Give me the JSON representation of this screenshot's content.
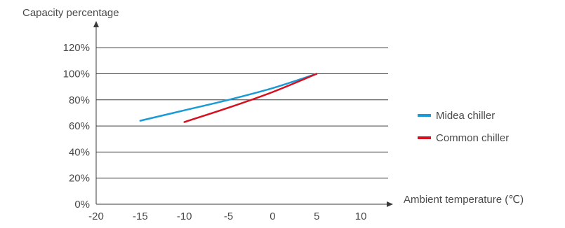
{
  "chart_data": {
    "type": "line",
    "title": "",
    "ylabel": "Capacity percentage",
    "xlabel": "Ambient temperature (℃)",
    "xlim": [
      -20,
      13
    ],
    "ylim": [
      0,
      130
    ],
    "xticks": [
      -20,
      -15,
      -10,
      -5,
      0,
      5,
      10
    ],
    "xtick_labels": [
      "-20",
      "-15",
      "-10",
      "-5",
      "0",
      "5",
      "10"
    ],
    "yticks": [
      0,
      20,
      40,
      60,
      80,
      100,
      120
    ],
    "ytick_labels": [
      "0%",
      "20%",
      "40%",
      "60%",
      "80%",
      "100%",
      "120%"
    ],
    "grid": "horizontal",
    "legend_position": "right",
    "series": [
      {
        "name": "Midea chiller",
        "color": "#1a9ad6",
        "x": [
          -15,
          -10,
          -5,
          0,
          5
        ],
        "y": [
          64,
          72,
          80,
          89,
          100
        ]
      },
      {
        "name": "Common chiller",
        "color": "#d6101e",
        "x": [
          -10,
          -5,
          0,
          5
        ],
        "y": [
          63,
          74,
          86,
          100
        ]
      }
    ]
  }
}
